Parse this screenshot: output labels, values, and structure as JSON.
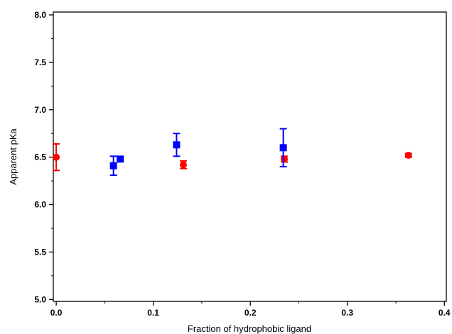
{
  "chart_data": {
    "type": "scatter",
    "xlabel": "Fraction of hydrophobic ligand",
    "ylabel": "Apparent pKa",
    "xlim": [
      -0.003,
      0.402
    ],
    "ylim": [
      4.98,
      8.03
    ],
    "x_ticks": [
      0.0,
      0.1,
      0.2,
      0.3,
      0.4
    ],
    "x_tick_labels": [
      "0.0",
      "0.1",
      "0.2",
      "0.3",
      "0.4"
    ],
    "y_ticks": [
      5.0,
      5.5,
      6.0,
      6.5,
      7.0,
      7.5,
      8.0
    ],
    "y_tick_labels": [
      "5.0",
      "5.5",
      "6.0",
      "6.5",
      "7.0",
      "7.5",
      "8.0"
    ],
    "grid": false,
    "legend": "none",
    "series": [
      {
        "color": "#ff0000",
        "marker": "circle",
        "points": [
          {
            "x": 0.0,
            "y": 6.5,
            "err": 0.14
          },
          {
            "x": 0.131,
            "y": 6.42,
            "err": 0.04
          },
          {
            "x": 0.235,
            "y": 6.48,
            "err": 0.03
          },
          {
            "x": 0.363,
            "y": 6.52,
            "err": 0.02
          }
        ]
      },
      {
        "color": "#0000ff",
        "marker": "square",
        "points": [
          {
            "x": 0.059,
            "y": 6.41,
            "err": 0.1
          },
          {
            "x": 0.066,
            "y": 6.48,
            "err": 0.02
          },
          {
            "x": 0.124,
            "y": 6.63,
            "err": 0.12
          },
          {
            "x": 0.234,
            "y": 6.6,
            "err": 0.2
          }
        ]
      }
    ]
  }
}
